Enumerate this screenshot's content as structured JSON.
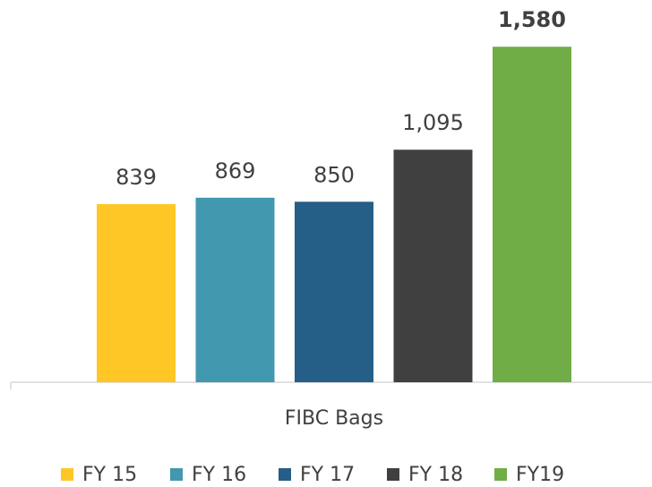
{
  "chart_data": {
    "type": "bar",
    "categories": [
      "FIBC Bags"
    ],
    "series": [
      {
        "name": "FY 15",
        "color": "#FFC726",
        "values": [
          839
        ]
      },
      {
        "name": "FY 16",
        "color": "#4198AF",
        "values": [
          869
        ]
      },
      {
        "name": "FY 17",
        "color": "#255E86",
        "values": [
          850
        ]
      },
      {
        "name": "FY 18",
        "color": "#404040",
        "values": [
          1095
        ],
        "value_labels": [
          "1,095"
        ]
      },
      {
        "name": "FY19",
        "color": "#70AD47",
        "values": [
          1580
        ],
        "value_labels": [
          "1,580"
        ]
      }
    ],
    "ylim": [
      0,
      1800
    ],
    "legend": "bottom"
  }
}
